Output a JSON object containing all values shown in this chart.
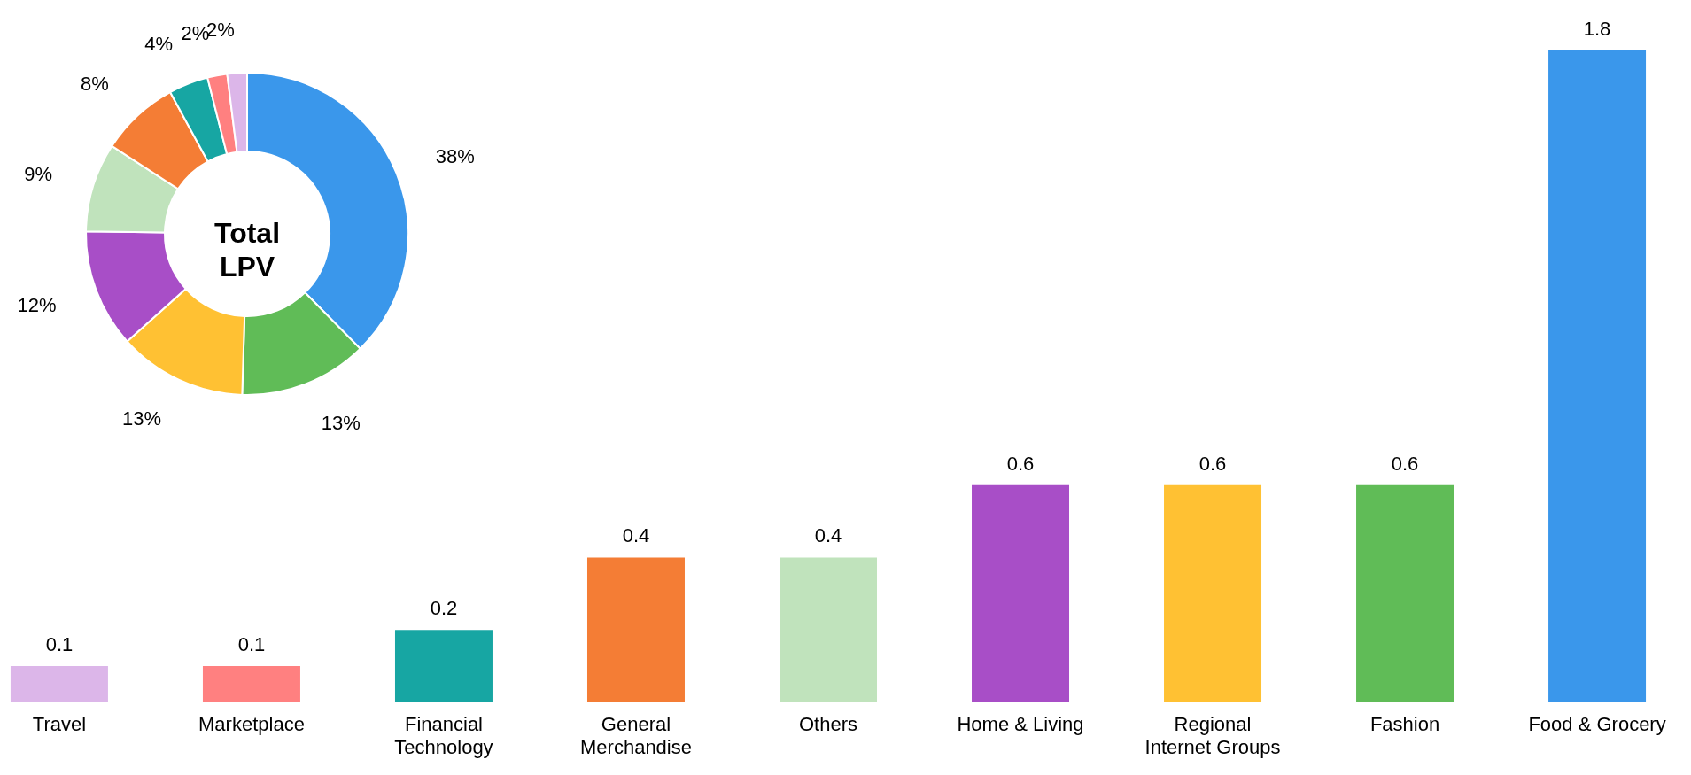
{
  "chart_data": [
    {
      "type": "bar",
      "categories": [
        "Travel",
        "Marketplace",
        "Financial Technology",
        "General Merchandise",
        "Others",
        "Home & Living",
        "Regional Internet Groups",
        "Fashion",
        "Food & Grocery"
      ],
      "values": [
        0.1,
        0.1,
        0.2,
        0.4,
        0.4,
        0.6,
        0.6,
        0.6,
        1.8
      ],
      "colors": [
        "#dcb6e9",
        "#ff8080",
        "#17a6a3",
        "#f47d35",
        "#c0e3bc",
        "#a84ec7",
        "#ffc133",
        "#60bc57",
        "#3a97eb"
      ],
      "data_labels": true
    },
    {
      "type": "donut",
      "title": "Total LPV",
      "categories": [
        null,
        null,
        null,
        null,
        null,
        null,
        null,
        null,
        null
      ],
      "values": [
        38,
        13,
        13,
        12,
        9,
        8,
        4,
        2,
        2
      ],
      "colors": [
        "#3a97eb",
        "#60bc57",
        "#ffc133",
        "#a84ec7",
        "#c0e3bc",
        "#f47d35",
        "#17a6a3",
        "#ff8080",
        "#dcb6e9"
      ],
      "value_labels": [
        "38%",
        "13%",
        "13%",
        "12%",
        "9%",
        "8%",
        "4%",
        "2%",
        "2%"
      ]
    }
  ]
}
